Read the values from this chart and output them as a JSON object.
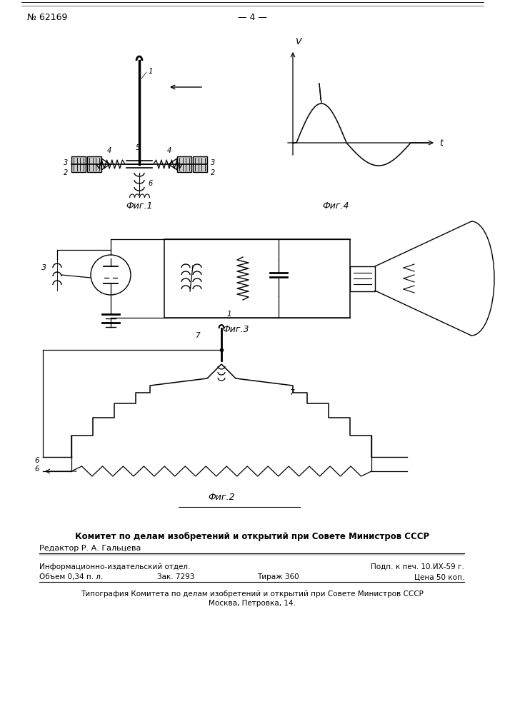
{
  "bg_color": "#ffffff",
  "page_number_text": "№ 62169",
  "page_center_text": "— 4 —",
  "fig1_caption": "Фиг.1",
  "fig2_caption": "Фиг.2",
  "fig3_caption": "Фиг.3",
  "fig4_caption": "Фиг.4",
  "footer_bold": "Комитет по делам изобретений и открытий при Совете Министров СССР",
  "footer_editor": "Редактор Р. А. Гальцева",
  "footer_info_left": "Информационно-издательский отдел.",
  "footer_info_right": "Подп. к печ. 10.ИХ-59 г.",
  "footer_vol": "Объем 0,34 п. л.",
  "footer_zak": "Зак. 7293",
  "footer_tirazh": "Тираж 360",
  "footer_price": "Цена 50 коп.",
  "footer_typo": "Типография Комитета по делам изобретений и открытий при Совете Министров СССР",
  "footer_addr": "Москва, Петровка, 14."
}
